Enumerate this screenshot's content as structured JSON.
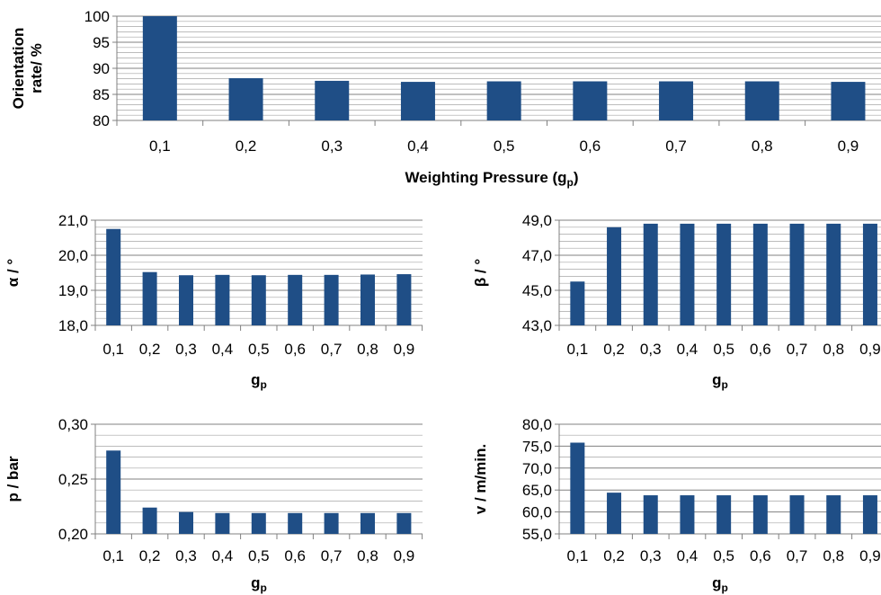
{
  "colors": {
    "bar": "#1f4e86",
    "grid": "#a6a6a6",
    "axis": "#808080",
    "text": "#000000"
  },
  "chart_data": [
    {
      "id": "orientation",
      "type": "bar",
      "categories": [
        "0,1",
        "0,2",
        "0,3",
        "0,4",
        "0,5",
        "0,6",
        "0,7",
        "0,8",
        "0,9"
      ],
      "values": [
        100.0,
        88.1,
        87.6,
        87.4,
        87.5,
        87.5,
        87.5,
        87.5,
        87.4
      ],
      "title": "",
      "ylabel": [
        "Orientation",
        "rate/ %"
      ],
      "xlabel": {
        "main": "Weighting Pressure (g",
        "sub": "p",
        "tail": ")"
      },
      "ylim": [
        80,
        100
      ],
      "y_ticks": [
        "80",
        "85",
        "90",
        "95",
        "100"
      ],
      "grid": true
    },
    {
      "id": "alpha",
      "type": "bar",
      "categories": [
        "0,1",
        "0,2",
        "0,3",
        "0,4",
        "0,5",
        "0,6",
        "0,7",
        "0,8",
        "0,9"
      ],
      "values": [
        20.75,
        19.52,
        19.43,
        19.44,
        19.43,
        19.44,
        19.44,
        19.45,
        19.46
      ],
      "title": "",
      "ylabel": [
        "α / °"
      ],
      "xlabel": {
        "main": "g",
        "sub": "p",
        "tail": ""
      },
      "ylim": [
        18,
        21
      ],
      "y_ticks": [
        "18,0",
        "19,0",
        "20,0",
        "21,0"
      ],
      "grid": true
    },
    {
      "id": "beta",
      "type": "bar",
      "categories": [
        "0,1",
        "0,2",
        "0,3",
        "0,4",
        "0,5",
        "0,6",
        "0,7",
        "0,8",
        "0,9"
      ],
      "values": [
        45.5,
        48.6,
        48.8,
        48.8,
        48.8,
        48.8,
        48.8,
        48.8,
        48.8
      ],
      "title": "",
      "ylabel": [
        "β / °"
      ],
      "xlabel": {
        "main": "g",
        "sub": "p",
        "tail": ""
      },
      "ylim": [
        43,
        49
      ],
      "y_ticks": [
        "43,0",
        "45,0",
        "47,0",
        "49,0"
      ],
      "grid": true
    },
    {
      "id": "pressure",
      "type": "bar",
      "categories": [
        "0,1",
        "0,2",
        "0,3",
        "0,4",
        "0,5",
        "0,6",
        "0,7",
        "0,8",
        "0,9"
      ],
      "values": [
        0.276,
        0.224,
        0.22,
        0.219,
        0.219,
        0.219,
        0.219,
        0.219,
        0.219
      ],
      "title": "",
      "ylabel": [
        "p / bar"
      ],
      "xlabel": {
        "main": "g",
        "sub": "p",
        "tail": ""
      },
      "ylim": [
        0.2,
        0.3
      ],
      "y_ticks": [
        "0,20",
        "0,25",
        "0,30"
      ],
      "grid": true
    },
    {
      "id": "velocity",
      "type": "bar",
      "categories": [
        "0,1",
        "0,2",
        "0,3",
        "0,4",
        "0,5",
        "0,6",
        "0,7",
        "0,8",
        "0,9"
      ],
      "values": [
        75.8,
        64.4,
        63.8,
        63.8,
        63.8,
        63.8,
        63.8,
        63.8,
        63.8
      ],
      "title": "",
      "ylabel": [
        "v / m/min."
      ],
      "xlabel": {
        "main": "g",
        "sub": "p",
        "tail": ""
      },
      "ylim": [
        55,
        80
      ],
      "y_ticks": [
        "55,0",
        "60,0",
        "65,0",
        "70,0",
        "75,0",
        "80,0"
      ],
      "grid": true
    }
  ]
}
